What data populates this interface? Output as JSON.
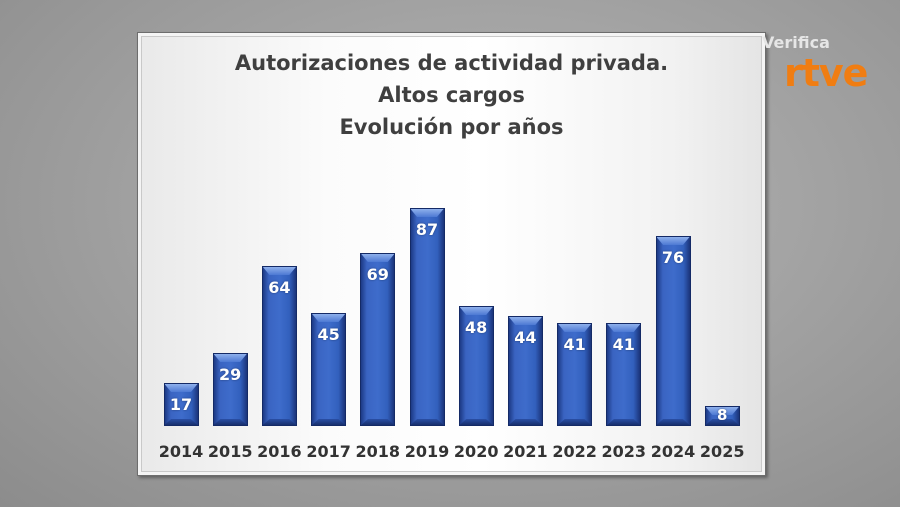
{
  "chart_data": {
    "type": "bar",
    "title": "Autorizaciones de actividad privada. Altos cargos Evolución por años",
    "title_lines": [
      "Autorizaciones de actividad privada.",
      "Altos cargos",
      "Evolución por años"
    ],
    "categories": [
      "2014",
      "2015",
      "2016",
      "2017",
      "2018",
      "2019",
      "2020",
      "2021",
      "2022",
      "2023",
      "2024",
      "2025"
    ],
    "values": [
      17,
      29,
      64,
      45,
      69,
      87,
      48,
      44,
      41,
      41,
      76,
      8
    ],
    "xlabel": "",
    "ylabel": "",
    "ylim": [
      0,
      90
    ],
    "grid": false,
    "legend": null,
    "data_labels": true,
    "bar_color": "#3a64c2"
  },
  "branding": {
    "top": "Verifica",
    "main": "rtve",
    "main_color": "#f07d12"
  }
}
